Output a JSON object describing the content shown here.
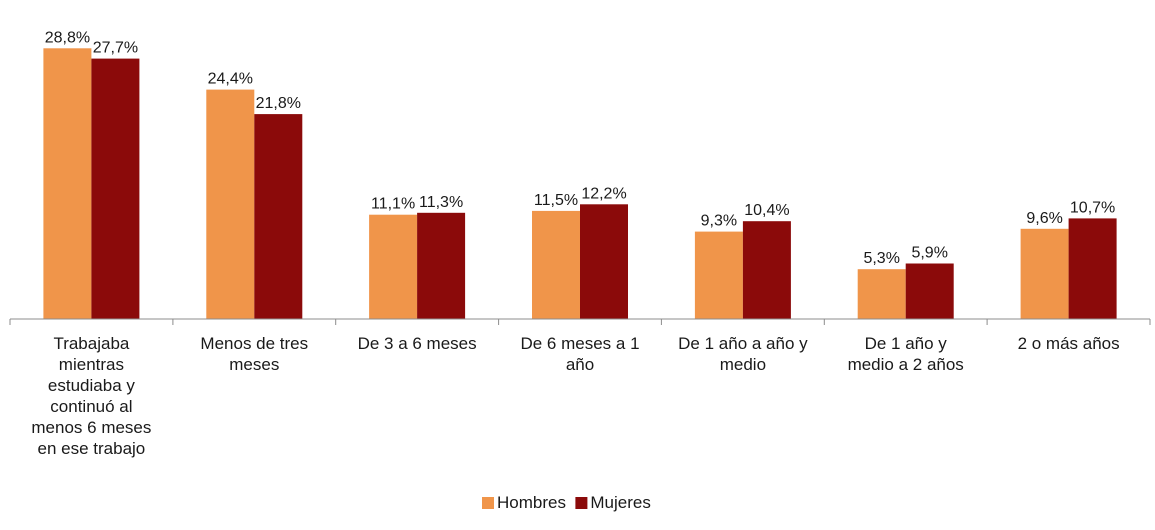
{
  "chart_data": {
    "type": "bar",
    "categories": [
      "Trabajaba mientras estudiaba y continuó al menos 6 meses en ese trabajo",
      "Menos de tres meses",
      "De 3 a 6 meses",
      "De 6 meses a 1 año",
      "De 1 año a año y medio",
      "De 1 año y medio a 2 años",
      "2 o más años"
    ],
    "category_lines": [
      [
        "Trabajaba",
        "mientras",
        "estudiaba y",
        "continuó al",
        "menos 6 meses",
        "en ese trabajo"
      ],
      [
        "Menos de tres",
        "meses"
      ],
      [
        "De 3 a 6 meses"
      ],
      [
        "De 6 meses a 1",
        "año"
      ],
      [
        "De 1 año a año y",
        "medio"
      ],
      [
        "De 1 año y",
        "medio a 2 años"
      ],
      [
        "2 o más años"
      ]
    ],
    "series": [
      {
        "name": "Hombres",
        "color": "#F0954A",
        "values": [
          28.8,
          24.4,
          11.1,
          11.5,
          9.3,
          5.3,
          9.6
        ],
        "labels": [
          "28,8%",
          "24,4%",
          "11,1%",
          "11,5%",
          "9,3%",
          "5,3%",
          "9,6%"
        ]
      },
      {
        "name": "Mujeres",
        "color": "#8B0A0A",
        "values": [
          27.7,
          21.8,
          11.3,
          12.2,
          10.4,
          5.9,
          10.7
        ],
        "labels": [
          "27,7%",
          "21,8%",
          "11,3%",
          "12,2%",
          "10,4%",
          "5,9%",
          "10,7%"
        ]
      }
    ],
    "ylim": [
      0,
      30
    ],
    "grid": false,
    "legend_position": "bottom-center",
    "title": "",
    "xlabel": "",
    "ylabel": ""
  }
}
